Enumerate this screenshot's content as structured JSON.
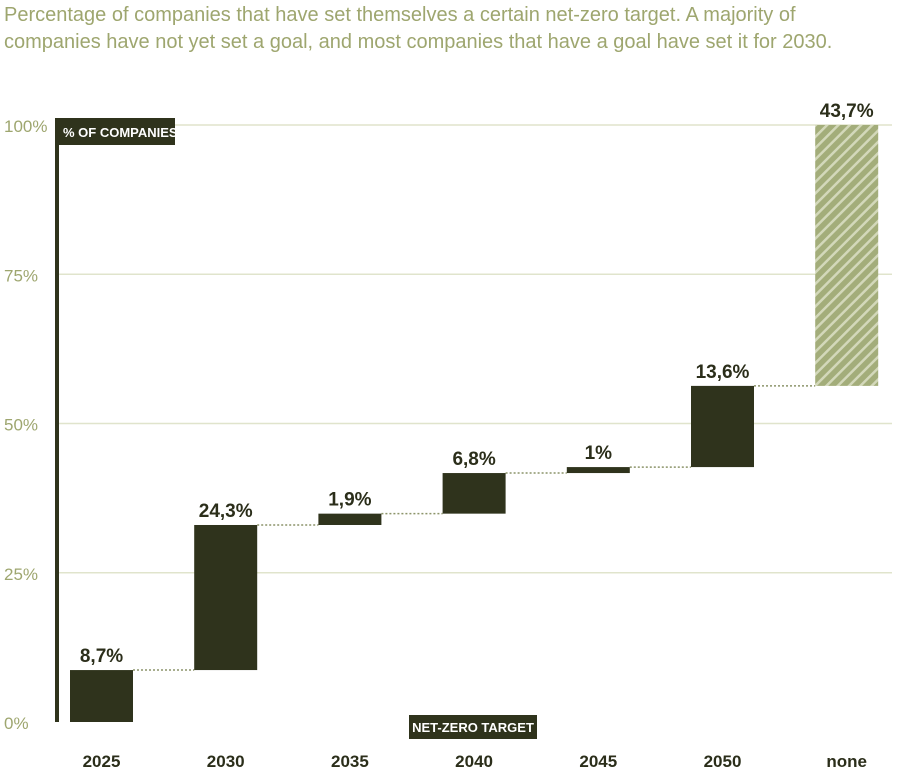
{
  "chart_data": {
    "type": "waterfall",
    "title": "Percentage of companies that have set themselves a certain net-zero target. A majority of companies have not yet set a goal, and most companies that have a goal have set it for 2030.",
    "xlabel": "NET-ZERO TARGET",
    "ylabel": "% OF COMPANIES",
    "categories": [
      "2025",
      "2030",
      "2035",
      "2040",
      "2045",
      "2050",
      "none"
    ],
    "values": [
      8.7,
      24.3,
      1.9,
      6.8,
      1,
      13.6,
      43.7
    ],
    "data_labels": [
      "8,7%",
      "24,3%",
      "1,9%",
      "6,8%",
      "1%",
      "13,6%",
      "43,7%"
    ],
    "ylim": [
      0,
      100
    ],
    "yticks": [
      0,
      25,
      50,
      75,
      100
    ],
    "ytick_labels": [
      "0%",
      "25%",
      "50%",
      "75%",
      "100%"
    ],
    "grid": true,
    "colors": {
      "bar": "#2f331c",
      "none_bar": "#a3ad7a",
      "none_hatch": "#d3d8ba",
      "grid": "#e0e4cc",
      "title": "#9ea66f"
    }
  }
}
